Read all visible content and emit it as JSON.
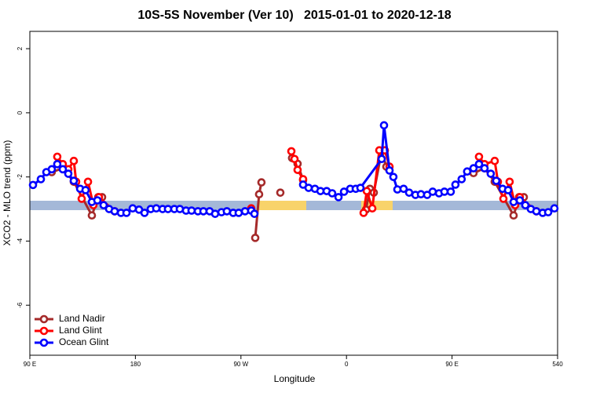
{
  "chart_data": {
    "type": "line",
    "title": "10S-5S November (Ver 10)   2015-01-01 to 2020-12-18",
    "xlabel": "Longitude",
    "ylabel": "XCO2 - MLO trend (ppm)",
    "xlim": [
      90,
      540
    ],
    "ylim": [
      2.54,
      -7.56
    ],
    "xticks": [
      {
        "value": 90,
        "label": "90 E"
      },
      180,
      {
        "value": 270,
        "label": "90 W"
      },
      {
        "value": 360,
        "label": "0"
      },
      {
        "value": 450,
        "label": "90 E"
      },
      540
    ],
    "yticks": [
      2,
      0,
      -2,
      -4,
      -6
    ],
    "legend": "bottom-left",
    "series": [
      {
        "name": "Land Nadir",
        "color": "#a52a2a",
        "x": [
          108.7,
          118.1,
          127.5,
          142.9,
          148.3,
          151.6,
          240,
          282.2,
          285.5,
          287.5,
          295,
          303.6,
          308,
          313.6,
          318.3,
          323,
          345,
          376.6,
          380,
          383.3,
          390,
          394,
          440,
          468.3,
          477.7,
          486.4,
          502.5,
          507.2,
          511.2
        ],
        "values": [
          -1.85,
          -1.73,
          -2.15,
          -3.2,
          -2.63,
          -2.63,
          null,
          -3.9,
          -2.54,
          -2.17,
          null,
          -2.49,
          null,
          -1.41,
          -1.59,
          -2.1,
          null,
          -3.02,
          -2.37,
          -2.49,
          -1.2,
          -1.68,
          null,
          -1.88,
          -1.73,
          -2.15,
          -3.2,
          -2.63,
          -2.63
        ]
      },
      {
        "name": "Land Glint",
        "color": "#ff0000",
        "x": [
          113.4,
          118.1,
          122.8,
          127.5,
          129.5,
          134.2,
          139.6,
          144.2,
          148.9,
          162.3,
          220,
          278.8,
          295,
          313,
          315.7,
          318.3,
          323,
          350,
          374.6,
          377.3,
          382,
          388,
          392.7,
          396.7,
          435,
          473,
          477.7,
          486.4,
          489.1,
          493.8,
          499.1,
          503.8,
          507.8,
          521.9
        ],
        "values": [
          -1.37,
          -1.6,
          -1.76,
          -1.5,
          -2.15,
          -2.68,
          -2.15,
          -2.88,
          -2.63,
          -3.07,
          null,
          -2.98,
          null,
          -1.2,
          -1.44,
          -1.78,
          -2.07,
          null,
          -3.12,
          -2.44,
          -2.98,
          -1.17,
          -1.17,
          -1.68,
          null,
          -1.37,
          -1.6,
          -1.5,
          -2.15,
          -2.68,
          -2.15,
          -2.88,
          -2.63,
          -3.07
        ]
      },
      {
        "name": "Ocean Glint",
        "color": "#0000ff",
        "x": [
          92.7,
          99.4,
          104.1,
          108.7,
          113.4,
          118.1,
          122.8,
          127.5,
          132.9,
          137.5,
          142.9,
          147.6,
          152.9,
          157.6,
          162.3,
          167.7,
          172.4,
          177.7,
          183.1,
          187.8,
          193.1,
          197.8,
          203.2,
          207.8,
          213.2,
          217.9,
          223.2,
          227.9,
          233.3,
          238,
          243.3,
          248,
          253.4,
          258,
          263.4,
          268.1,
          273.5,
          278.8,
          281.5,
          302,
          323,
          327.7,
          333.1,
          337.8,
          343.1,
          347.8,
          353.2,
          357.9,
          363.2,
          367.9,
          371.9,
          390,
          392,
          396.7,
          400,
          403.4,
          408.7,
          413.4,
          418.8,
          423.5,
          428.8,
          433.5,
          438.9,
          443.5,
          448.9,
          452.9,
          458.2,
          462.9,
          468.3,
          473,
          477.7,
          483,
          487.7,
          493.1,
          497.8,
          502.5,
          507.8,
          512.5,
          517.2,
          521.9,
          527.3,
          532,
          537.3
        ],
        "values": [
          -2.25,
          -2.07,
          -1.85,
          -1.76,
          -1.6,
          -1.76,
          -1.9,
          -2.12,
          -2.37,
          -2.41,
          -2.78,
          -2.73,
          -2.88,
          -3.0,
          -3.07,
          -3.12,
          -3.12,
          -2.98,
          -3.02,
          -3.12,
          -3.0,
          -2.98,
          -3.0,
          -3.0,
          -3.0,
          -3.0,
          -3.05,
          -3.05,
          -3.07,
          -3.07,
          -3.07,
          -3.15,
          -3.1,
          -3.07,
          -3.12,
          -3.12,
          -3.07,
          -3.05,
          -3.15,
          null,
          -2.24,
          -2.34,
          -2.37,
          -2.44,
          -2.44,
          -2.51,
          -2.63,
          -2.46,
          -2.37,
          -2.37,
          -2.34,
          -1.44,
          -0.39,
          -1.8,
          -2.0,
          -2.39,
          -2.37,
          -2.49,
          -2.56,
          -2.54,
          -2.56,
          -2.46,
          -2.51,
          -2.46,
          -2.46,
          -2.24,
          -2.07,
          -1.83,
          -1.73,
          -1.6,
          -1.73,
          -1.9,
          -2.12,
          -2.37,
          -2.41,
          -2.78,
          -2.73,
          -2.88,
          -3.0,
          -3.07,
          -3.12,
          -3.1,
          -2.98
        ]
      }
    ]
  }
}
